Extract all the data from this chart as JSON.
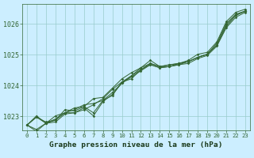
{
  "background_color": "#cceeff",
  "plot_bg_color": "#cceeff",
  "grid_color": "#99cccc",
  "line_color": "#336633",
  "xlabel": "Graphe pression niveau de la mer (hPa)",
  "ylim": [
    1022.55,
    1026.65
  ],
  "xlim": [
    -0.5,
    23.5
  ],
  "yticks": [
    1023,
    1024,
    1025,
    1026
  ],
  "xticks": [
    0,
    1,
    2,
    3,
    4,
    5,
    6,
    7,
    8,
    9,
    10,
    11,
    12,
    13,
    14,
    15,
    16,
    17,
    18,
    19,
    20,
    21,
    22,
    23
  ],
  "series": [
    [
      1022.72,
      1023.02,
      1022.78,
      1022.82,
      1023.08,
      1023.12,
      1023.22,
      1023.38,
      1023.58,
      1023.88,
      1024.12,
      1024.32,
      1024.58,
      1024.72,
      1024.62,
      1024.67,
      1024.72,
      1024.78,
      1024.92,
      1025.02,
      1025.38,
      1026.02,
      1026.32,
      1026.42
    ],
    [
      1022.72,
      1022.52,
      1022.78,
      1022.92,
      1023.12,
      1023.12,
      1023.28,
      1023.02,
      1023.48,
      1023.72,
      1024.08,
      1024.28,
      1024.48,
      1024.68,
      1024.58,
      1024.62,
      1024.68,
      1024.72,
      1024.88,
      1024.98,
      1025.28,
      1025.88,
      1026.22,
      1026.38
    ],
    [
      1022.72,
      1022.98,
      1022.82,
      1022.88,
      1023.22,
      1023.18,
      1023.32,
      1023.58,
      1023.62,
      1023.92,
      1024.22,
      1024.42,
      1024.58,
      1024.82,
      1024.62,
      1024.62,
      1024.72,
      1024.82,
      1025.02,
      1025.08,
      1025.42,
      1026.08,
      1026.38,
      1026.48
    ],
    [
      1022.72,
      1022.98,
      1022.78,
      1022.88,
      1023.12,
      1023.22,
      1023.38,
      1023.42,
      1023.52,
      1023.78,
      1024.08,
      1024.32,
      1024.52,
      1024.68,
      1024.58,
      1024.62,
      1024.68,
      1024.78,
      1024.92,
      1025.02,
      1025.32,
      1025.92,
      1026.28,
      1026.42
    ],
    [
      1022.72,
      1022.58,
      1022.78,
      1023.02,
      1023.12,
      1023.28,
      1023.32,
      1023.12,
      1023.52,
      1023.68,
      1024.12,
      1024.22,
      1024.52,
      1024.72,
      1024.62,
      1024.68,
      1024.72,
      1024.78,
      1024.92,
      1025.02,
      1025.32,
      1025.98,
      1026.28,
      1026.42
    ]
  ]
}
